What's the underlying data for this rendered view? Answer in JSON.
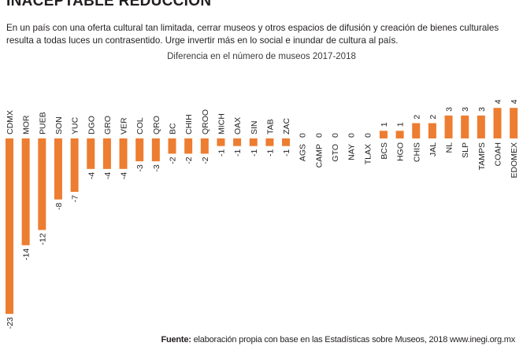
{
  "header": {
    "headline": "INACEPTABLE REDUCCIÓN",
    "intro": "En un país con una oferta cultural tan limitada, cerrar museos y otros espacios de difusión y creación de bienes culturales resulta a todas luces un contrasentido. Urge invertir más en lo social e inundar de cultura al país."
  },
  "footer": {
    "source_label": "Fuente:",
    "source_text": " elaboración propia con base en las Estadísticas sobre Museos, 2018 www.inegi.org.mx"
  },
  "chart_data": {
    "type": "bar",
    "title": "Diferencia en el número de museos 2017-2018",
    "xlabel": "",
    "ylabel": "",
    "ylim": [
      -23,
      4
    ],
    "grid": false,
    "bar_color": "#ed7d31",
    "categories": [
      "CDMX",
      "MOR",
      "PUEB",
      "SON",
      "YUC",
      "DGO",
      "GRO",
      "VER",
      "COL",
      "QRO",
      "BC",
      "CHIH",
      "QROO",
      "MICH",
      "OAX",
      "SIN",
      "TAB",
      "ZAC",
      "AGS",
      "CAMP",
      "GTO",
      "NAY",
      "TLAX",
      "BCS",
      "HGO",
      "CHIS",
      "JAL",
      "NL",
      "SLP",
      "TAMPS",
      "COAH",
      "EDOMEX"
    ],
    "values": [
      -23,
      -14,
      -12,
      -8,
      -7,
      -4,
      -4,
      -4,
      -3,
      -3,
      -2,
      -2,
      -2,
      -1,
      -1,
      -1,
      -1,
      -1,
      0,
      0,
      0,
      0,
      0,
      1,
      1,
      2,
      2,
      3,
      3,
      3,
      4,
      4
    ]
  }
}
